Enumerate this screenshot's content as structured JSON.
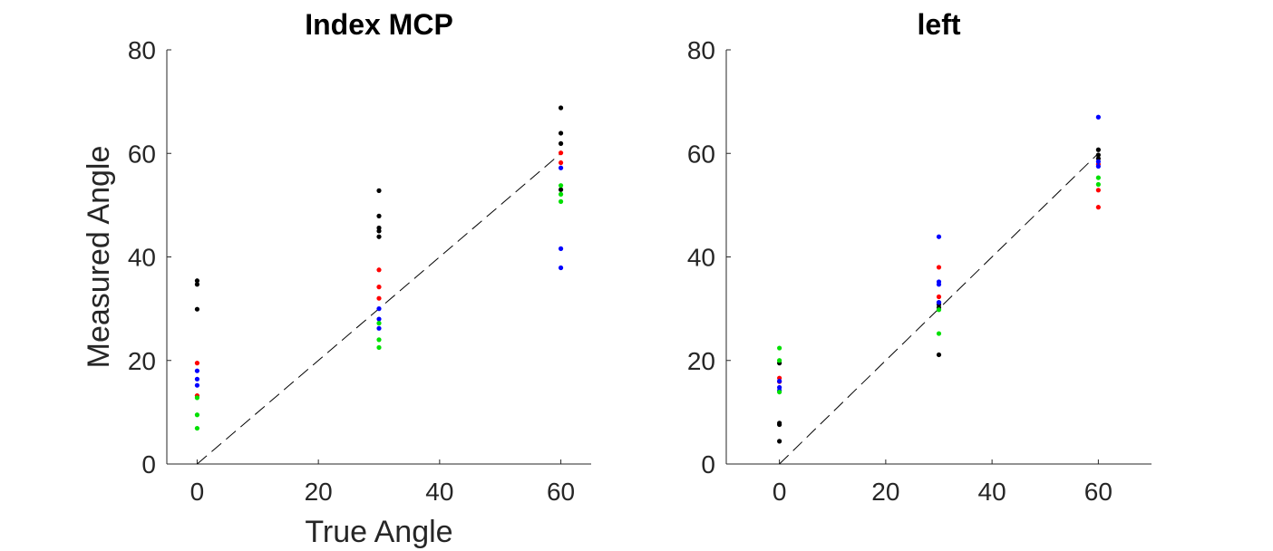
{
  "chart_data": [
    {
      "type": "scatter",
      "title": "Index MCP",
      "xlabel": "True Angle",
      "ylabel": "Measured Angle",
      "xlim": [
        -5,
        65
      ],
      "ylim": [
        0,
        80
      ],
      "xticks": [
        0,
        20,
        40,
        60
      ],
      "yticks": [
        0,
        20,
        40,
        60,
        80
      ],
      "reference_line": {
        "from": [
          0,
          0
        ],
        "to": [
          60,
          60
        ],
        "style": "dashed",
        "color": "#000000"
      },
      "series": [
        {
          "color": "#000000",
          "points": [
            [
              0,
              35.4
            ],
            [
              0,
              34.7
            ],
            [
              0,
              29.9
            ],
            [
              30,
              52.8
            ],
            [
              30,
              47.9
            ],
            [
              30,
              45.6
            ],
            [
              30,
              45.0
            ],
            [
              30,
              43.9
            ],
            [
              60,
              68.8
            ],
            [
              60,
              63.9
            ],
            [
              60,
              61.9
            ],
            [
              60,
              53.0
            ]
          ]
        },
        {
          "color": "#ff0000",
          "points": [
            [
              0,
              19.5
            ],
            [
              0,
              13.2
            ],
            [
              30,
              37.5
            ],
            [
              30,
              34.2
            ],
            [
              30,
              32.0
            ],
            [
              60,
              60.1
            ],
            [
              60,
              58.2
            ]
          ]
        },
        {
          "color": "#0000ff",
          "points": [
            [
              0,
              18.0
            ],
            [
              0,
              16.4
            ],
            [
              0,
              15.2
            ],
            [
              30,
              30.0
            ],
            [
              30,
              28.0
            ],
            [
              30,
              26.2
            ],
            [
              60,
              57.2
            ],
            [
              60,
              41.6
            ],
            [
              60,
              37.9
            ]
          ]
        },
        {
          "color": "#00e000",
          "points": [
            [
              0,
              12.8
            ],
            [
              0,
              9.5
            ],
            [
              0,
              6.9
            ],
            [
              30,
              27.2
            ],
            [
              30,
              24.0
            ],
            [
              30,
              22.5
            ],
            [
              60,
              53.8
            ],
            [
              60,
              52.1
            ],
            [
              60,
              50.7
            ]
          ]
        }
      ]
    },
    {
      "type": "scatter",
      "title": "left",
      "xlabel": "",
      "ylabel": "",
      "xlim": [
        -10,
        70
      ],
      "ylim": [
        0,
        80
      ],
      "xticks": [
        0,
        20,
        40,
        60
      ],
      "yticks": [
        0,
        20,
        40,
        60,
        80
      ],
      "reference_line": {
        "from": [
          0,
          0
        ],
        "to": [
          60,
          60
        ],
        "style": "dashed",
        "color": "#000000"
      },
      "series": [
        {
          "color": "#000000",
          "points": [
            [
              0,
              19.5
            ],
            [
              0,
              7.9
            ],
            [
              0,
              7.6
            ],
            [
              0,
              4.4
            ],
            [
              30,
              31.2
            ],
            [
              30,
              30.8
            ],
            [
              30,
              30.2
            ],
            [
              30,
              21.1
            ],
            [
              60,
              60.7
            ],
            [
              60,
              59.7
            ],
            [
              60,
              59.0
            ]
          ]
        },
        {
          "color": "#ff0000",
          "points": [
            [
              0,
              16.6
            ],
            [
              0,
              15.9
            ],
            [
              30,
              38.0
            ],
            [
              30,
              32.3
            ],
            [
              60,
              57.9
            ],
            [
              60,
              52.9
            ],
            [
              60,
              49.6
            ]
          ]
        },
        {
          "color": "#0000ff",
          "points": [
            [
              0,
              16.0
            ],
            [
              0,
              14.8
            ],
            [
              0,
              14.2
            ],
            [
              30,
              43.9
            ],
            [
              30,
              35.2
            ],
            [
              30,
              34.7
            ],
            [
              30,
              31.2
            ],
            [
              60,
              67.0
            ],
            [
              60,
              58.4
            ],
            [
              60,
              57.5
            ]
          ]
        },
        {
          "color": "#00e000",
          "points": [
            [
              0,
              22.4
            ],
            [
              0,
              20.0
            ],
            [
              0,
              13.9
            ],
            [
              30,
              29.8
            ],
            [
              30,
              25.2
            ],
            [
              60,
              55.3
            ],
            [
              60,
              54.0
            ]
          ]
        }
      ]
    }
  ]
}
